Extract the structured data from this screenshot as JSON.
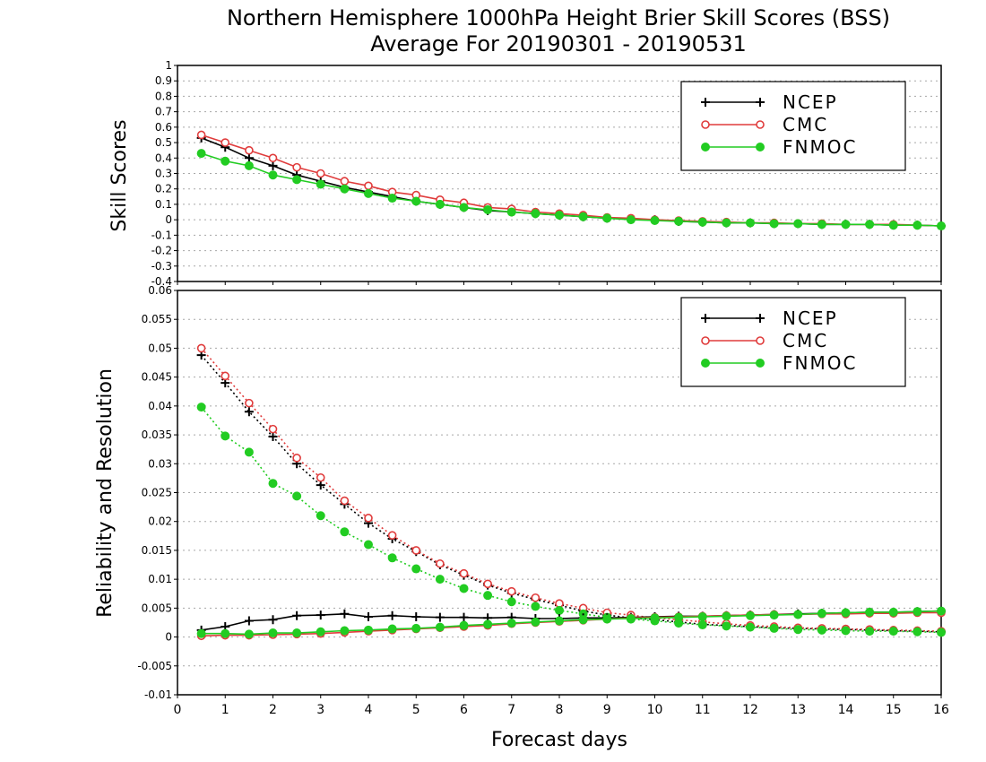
{
  "title_line1": "Northern Hemisphere 1000hPa Height Brier Skill Scores (BSS)",
  "title_line2": "Average For 20190301 - 20190531",
  "xlabel": "Forecast days",
  "colors": {
    "NCEP": "#000000",
    "CMC": "#e03c3c",
    "FNMOC": "#22cc22"
  },
  "chart_data": [
    {
      "type": "line",
      "ylabel": "Skill Scores",
      "xlim": [
        0,
        16
      ],
      "ylim": [
        -0.4,
        1
      ],
      "x_ticks": [
        0,
        1,
        2,
        3,
        4,
        5,
        6,
        7,
        8,
        9,
        10,
        11,
        12,
        13,
        14,
        15,
        16
      ],
      "y_ticks": [
        -0.4,
        -0.3,
        -0.2,
        -0.1,
        0,
        0.1,
        0.2,
        0.3,
        0.4,
        0.5,
        0.6,
        0.7,
        0.8,
        0.9,
        1
      ],
      "y_tick_labels": [
        "-0.4",
        "-0.3",
        "-0.2",
        "-0.1",
        "0",
        "0.1",
        "0.2",
        "0.3",
        "0.4",
        "0.5",
        "0.6",
        "0.7",
        "0.8",
        "0.9",
        "1"
      ],
      "grid": true,
      "legend": "top-right",
      "x": [
        0.5,
        1,
        1.5,
        2,
        2.5,
        3,
        3.5,
        4,
        4.5,
        5,
        5.5,
        6,
        6.5,
        7,
        7.5,
        8,
        8.5,
        9,
        9.5,
        10,
        10.5,
        11,
        11.5,
        12,
        12.5,
        13,
        13.5,
        14,
        14.5,
        15,
        15.5,
        16
      ],
      "series": [
        {
          "name": "NCEP",
          "marker": "plus",
          "style": "solid",
          "values": [
            0.53,
            0.47,
            0.4,
            0.35,
            0.29,
            0.25,
            0.21,
            0.18,
            0.15,
            0.12,
            0.1,
            0.08,
            0.06,
            0.05,
            0.04,
            0.03,
            0.02,
            0.01,
            0.005,
            0.0,
            -0.01,
            -0.015,
            -0.02,
            -0.02,
            -0.025,
            -0.025,
            -0.03,
            -0.03,
            -0.03,
            -0.035,
            -0.035,
            -0.04
          ]
        },
        {
          "name": "CMC",
          "marker": "open-circle",
          "style": "solid",
          "values": [
            0.55,
            0.5,
            0.45,
            0.4,
            0.34,
            0.3,
            0.25,
            0.22,
            0.18,
            0.16,
            0.13,
            0.11,
            0.08,
            0.07,
            0.05,
            0.04,
            0.03,
            0.015,
            0.01,
            0.0,
            -0.005,
            -0.01,
            -0.015,
            -0.02,
            -0.02,
            -0.025,
            -0.025,
            -0.03,
            -0.03,
            -0.03,
            -0.035,
            -0.04
          ]
        },
        {
          "name": "FNMOC",
          "marker": "filled-circle",
          "style": "solid",
          "values": [
            0.43,
            0.38,
            0.35,
            0.29,
            0.26,
            0.23,
            0.2,
            0.17,
            0.14,
            0.12,
            0.1,
            0.08,
            0.065,
            0.05,
            0.04,
            0.03,
            0.02,
            0.01,
            0.0,
            -0.005,
            -0.01,
            -0.015,
            -0.02,
            -0.02,
            -0.025,
            -0.025,
            -0.03,
            -0.03,
            -0.03,
            -0.035,
            -0.035,
            -0.04
          ]
        }
      ]
    },
    {
      "type": "line",
      "ylabel": "Reliability and Resolution",
      "xlim": [
        0,
        16
      ],
      "ylim": [
        -0.01,
        0.06
      ],
      "x_ticks": [
        0,
        1,
        2,
        3,
        4,
        5,
        6,
        7,
        8,
        9,
        10,
        11,
        12,
        13,
        14,
        15,
        16
      ],
      "y_ticks": [
        -0.01,
        -0.005,
        0,
        0.005,
        0.01,
        0.015,
        0.02,
        0.025,
        0.03,
        0.035,
        0.04,
        0.045,
        0.05,
        0.055,
        0.06
      ],
      "y_tick_labels": [
        "-0.01",
        "-0.005",
        "0",
        "0.005",
        "0.01",
        "0.015",
        "0.02",
        "0.025",
        "0.03",
        "0.035",
        "0.04",
        "0.045",
        "0.05",
        "0.055",
        "0.06"
      ],
      "grid": true,
      "legend": "top-right",
      "x": [
        0.5,
        1,
        1.5,
        2,
        2.5,
        3,
        3.5,
        4,
        4.5,
        5,
        5.5,
        6,
        6.5,
        7,
        7.5,
        8,
        8.5,
        9,
        9.5,
        10,
        10.5,
        11,
        11.5,
        12,
        12.5,
        13,
        13.5,
        14,
        14.5,
        15,
        15.5,
        16
      ],
      "series": [
        {
          "name": "NCEP",
          "marker": "plus",
          "style": "dotted",
          "component": "resolution",
          "values": [
            0.0488,
            0.044,
            0.039,
            0.0347,
            0.03,
            0.0263,
            0.023,
            0.0197,
            0.017,
            0.0148,
            0.0125,
            0.0107,
            0.009,
            0.0076,
            0.0065,
            0.0055,
            0.0045,
            0.0038,
            0.0033,
            0.003,
            0.0026,
            0.0022,
            0.002,
            0.0018,
            0.0016,
            0.0015,
            0.0014,
            0.0013,
            0.0012,
            0.0011,
            0.001,
            0.0009
          ]
        },
        {
          "name": "CMC",
          "marker": "open-circle",
          "style": "dotted",
          "component": "resolution",
          "values": [
            0.05,
            0.0452,
            0.0405,
            0.036,
            0.031,
            0.0276,
            0.0236,
            0.0206,
            0.0176,
            0.015,
            0.0127,
            0.011,
            0.0092,
            0.0079,
            0.0068,
            0.0058,
            0.005,
            0.0042,
            0.0038,
            0.0033,
            0.003,
            0.0026,
            0.0023,
            0.002,
            0.0018,
            0.0016,
            0.0015,
            0.0014,
            0.0013,
            0.0012,
            0.0011,
            0.001
          ]
        },
        {
          "name": "FNMOC",
          "marker": "filled-circle",
          "style": "dotted",
          "component": "resolution",
          "values": [
            0.0398,
            0.0348,
            0.032,
            0.0266,
            0.0244,
            0.021,
            0.0182,
            0.016,
            0.0137,
            0.0118,
            0.01,
            0.0084,
            0.0072,
            0.0061,
            0.0053,
            0.0046,
            0.004,
            0.0034,
            0.0031,
            0.0028,
            0.0024,
            0.0021,
            0.0019,
            0.0017,
            0.0015,
            0.0013,
            0.0012,
            0.0011,
            0.001,
            0.001,
            0.0009,
            0.0008
          ]
        },
        {
          "name": "NCEP",
          "marker": "plus",
          "style": "solid",
          "component": "reliability",
          "values": [
            0.0012,
            0.0018,
            0.0028,
            0.003,
            0.0037,
            0.0038,
            0.004,
            0.0035,
            0.0037,
            0.0035,
            0.0034,
            0.0034,
            0.0033,
            0.0034,
            0.0032,
            0.0032,
            0.0033,
            0.0033,
            0.0034,
            0.0035,
            0.0036,
            0.0036,
            0.0037,
            0.0038,
            0.0039,
            0.004,
            0.0041,
            0.0042,
            0.0043,
            0.0043,
            0.0044,
            0.0045
          ]
        },
        {
          "name": "CMC",
          "marker": "open-circle",
          "style": "solid",
          "component": "reliability",
          "values": [
            0.0002,
            0.0003,
            0.0003,
            0.0004,
            0.0005,
            0.0006,
            0.0008,
            0.001,
            0.0012,
            0.0014,
            0.0016,
            0.0018,
            0.002,
            0.0023,
            0.0025,
            0.0027,
            0.0029,
            0.0031,
            0.0033,
            0.0034,
            0.0035,
            0.0036,
            0.0037,
            0.0038,
            0.0039,
            0.0039,
            0.004,
            0.004,
            0.0041,
            0.0041,
            0.0042,
            0.0042
          ]
        },
        {
          "name": "FNMOC",
          "marker": "filled-circle",
          "style": "solid",
          "component": "reliability",
          "values": [
            0.0006,
            0.0006,
            0.0005,
            0.0007,
            0.0007,
            0.0009,
            0.0011,
            0.0012,
            0.0014,
            0.0015,
            0.0017,
            0.002,
            0.0022,
            0.0024,
            0.0026,
            0.0028,
            0.003,
            0.0031,
            0.0032,
            0.0033,
            0.0034,
            0.0035,
            0.0036,
            0.0037,
            0.0038,
            0.0039,
            0.0041,
            0.0042,
            0.0043,
            0.0043,
            0.0044,
            0.0045
          ]
        }
      ]
    }
  ]
}
